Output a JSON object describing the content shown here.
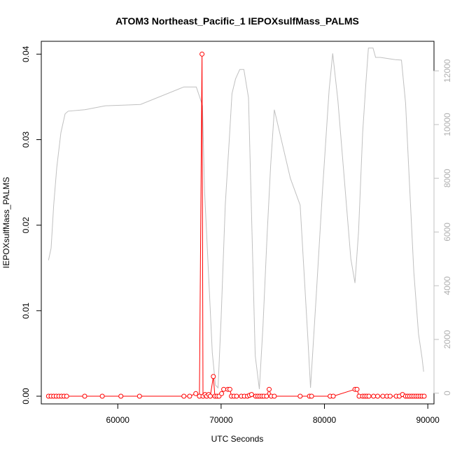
{
  "chart_data": {
    "type": "line",
    "title": "ATOM3 Northeast_Pacific_1 IEPOXsulfMass_PALMS",
    "xlabel": "UTC Seconds",
    "ylabel": "IEPOXsulfMass_PALMS",
    "xlim": [
      52600,
      90600
    ],
    "ylim": [
      -0.0009,
      0.0415
    ],
    "y2lim": [
      -400,
      13100
    ],
    "x_ticks": [
      "60000",
      "70000",
      "80000",
      "90000"
    ],
    "y_ticks": [
      "0.00",
      "0.01",
      "0.02",
      "0.03",
      "0.04"
    ],
    "y2_ticks": [
      "0",
      "2000",
      "4000",
      "6000",
      "8000",
      "10000",
      "12000"
    ],
    "grid": false,
    "series": [
      {
        "color": "#ff0000",
        "style": "line-points",
        "axis": "left",
        "points": [
          [
            53300,
            0.0
          ],
          [
            53550,
            0.0
          ],
          [
            53800,
            0.0
          ],
          [
            54050,
            0.0
          ],
          [
            54300,
            0.0
          ],
          [
            54550,
            0.0
          ],
          [
            54800,
            0.0
          ],
          [
            55050,
            0.0
          ],
          [
            56800,
            0.0
          ],
          [
            58500,
            0.0
          ],
          [
            60300,
            0.0
          ],
          [
            62100,
            0.0
          ],
          [
            66400,
            0.0
          ],
          [
            66950,
            0.0
          ],
          [
            67550,
            0.0003
          ],
          [
            67900,
            0.0
          ],
          [
            68150,
            0.04
          ],
          [
            68250,
            0.0
          ],
          [
            68450,
            0.0002
          ],
          [
            68600,
            0.0
          ],
          [
            68800,
            0.0002
          ],
          [
            68950,
            0.0
          ],
          [
            69250,
            0.0023
          ],
          [
            69400,
            0.0
          ],
          [
            69600,
            0.0
          ],
          [
            69800,
            0.0
          ],
          [
            70050,
            0.0003
          ],
          [
            70250,
            0.0008
          ],
          [
            70650,
            0.0008
          ],
          [
            70850,
            0.0008
          ],
          [
            71000,
            0.0
          ],
          [
            71250,
            0.0
          ],
          [
            71500,
            0.0
          ],
          [
            71950,
            0.0
          ],
          [
            72250,
            0.0
          ],
          [
            72550,
            0.0
          ],
          [
            72750,
            0.0001
          ],
          [
            72950,
            0.0002
          ],
          [
            73350,
            0.0
          ],
          [
            73550,
            0.0
          ],
          [
            73750,
            0.0
          ],
          [
            73950,
            0.0
          ],
          [
            74150,
            0.0
          ],
          [
            74400,
            0.0
          ],
          [
            74650,
            0.0008
          ],
          [
            74850,
            0.0
          ],
          [
            75150,
            0.0
          ],
          [
            77650,
            0.0
          ],
          [
            78550,
            0.0
          ],
          [
            78750,
            0.0
          ],
          [
            80550,
            0.0
          ],
          [
            80850,
            0.0
          ],
          [
            82950,
            0.0008
          ],
          [
            83150,
            0.0008
          ],
          [
            83350,
            0.0
          ],
          [
            83700,
            0.0
          ],
          [
            83900,
            0.0
          ],
          [
            84100,
            0.0
          ],
          [
            84300,
            0.0
          ],
          [
            84750,
            0.0
          ],
          [
            85150,
            0.0
          ],
          [
            85650,
            0.0
          ],
          [
            86050,
            0.0
          ],
          [
            86350,
            0.0
          ],
          [
            86950,
            0.0
          ],
          [
            87250,
            0.0
          ],
          [
            87550,
            0.0002
          ],
          [
            87850,
            0.0
          ],
          [
            88050,
            0.0
          ],
          [
            88250,
            0.0
          ],
          [
            88450,
            0.0
          ],
          [
            88650,
            0.0
          ],
          [
            88850,
            0.0
          ],
          [
            89050,
            0.0
          ],
          [
            89250,
            0.0
          ],
          [
            89450,
            0.0
          ],
          [
            89650,
            0.0
          ]
        ]
      },
      {
        "color": "#c0c0c0",
        "style": "line",
        "axis": "right",
        "points": [
          [
            53300,
            4950
          ],
          [
            53550,
            5400
          ],
          [
            53800,
            7000
          ],
          [
            54100,
            8400
          ],
          [
            54500,
            9700
          ],
          [
            54900,
            10400
          ],
          [
            55200,
            10500
          ],
          [
            56800,
            10550
          ],
          [
            58800,
            10700
          ],
          [
            60500,
            10720
          ],
          [
            62200,
            10750
          ],
          [
            66400,
            11400
          ],
          [
            67600,
            11400
          ],
          [
            67950,
            11000
          ],
          [
            68200,
            10700
          ],
          [
            68400,
            7500
          ],
          [
            69150,
            1500
          ],
          [
            69450,
            300
          ],
          [
            69700,
            200
          ],
          [
            70000,
            2800
          ],
          [
            70400,
            7000
          ],
          [
            70800,
            9500
          ],
          [
            71050,
            11150
          ],
          [
            71400,
            11700
          ],
          [
            71800,
            12050
          ],
          [
            72200,
            12050
          ],
          [
            72650,
            11000
          ],
          [
            73300,
            1400
          ],
          [
            73700,
            150
          ],
          [
            74050,
            2500
          ],
          [
            74450,
            5900
          ],
          [
            74800,
            8500
          ],
          [
            75150,
            10550
          ],
          [
            76700,
            8000
          ],
          [
            77650,
            7000
          ],
          [
            78400,
            2000
          ],
          [
            78650,
            200
          ],
          [
            79200,
            3600
          ],
          [
            79800,
            7500
          ],
          [
            80450,
            11300
          ],
          [
            80800,
            12650
          ],
          [
            81300,
            10900
          ],
          [
            82550,
            5000
          ],
          [
            82950,
            4100
          ],
          [
            83300,
            6000
          ],
          [
            83700,
            9700
          ],
          [
            84000,
            11500
          ],
          [
            84250,
            12850
          ],
          [
            84700,
            12850
          ],
          [
            84950,
            12500
          ],
          [
            85400,
            12500
          ],
          [
            86800,
            12420
          ],
          [
            87450,
            12400
          ],
          [
            87850,
            10800
          ],
          [
            88200,
            8000
          ],
          [
            88650,
            4500
          ],
          [
            89100,
            2200
          ],
          [
            89450,
            1300
          ],
          [
            89600,
            800
          ]
        ]
      }
    ]
  }
}
